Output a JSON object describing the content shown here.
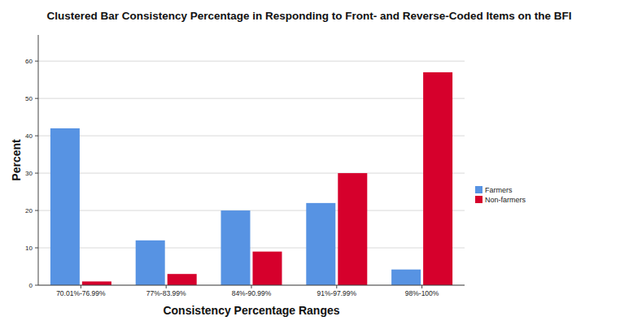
{
  "chart_data": {
    "type": "bar",
    "title": "Clustered Bar Consistency Percentage in Responding to Front- and Reverse-Coded Items on the BFI",
    "x_label": "Consistency Percentage Ranges",
    "y_label": "Percent",
    "categories": [
      "70.01%-76.99%",
      "77%-83.99%",
      "84%-90.99%",
      "91%-97.99%",
      "98%-100%"
    ],
    "series": [
      {
        "name": "Farmers",
        "color": "#5793e3",
        "values": [
          42,
          12,
          20,
          22,
          4.2
        ]
      },
      {
        "name": "Non-farmers",
        "color": "#d6002c",
        "values": [
          1,
          3,
          9,
          30,
          57
        ]
      }
    ],
    "ylim": [
      0,
      67
    ],
    "yticks": [
      0,
      10,
      20,
      30,
      40,
      50,
      60
    ],
    "grid": true,
    "legend": "upper right"
  }
}
